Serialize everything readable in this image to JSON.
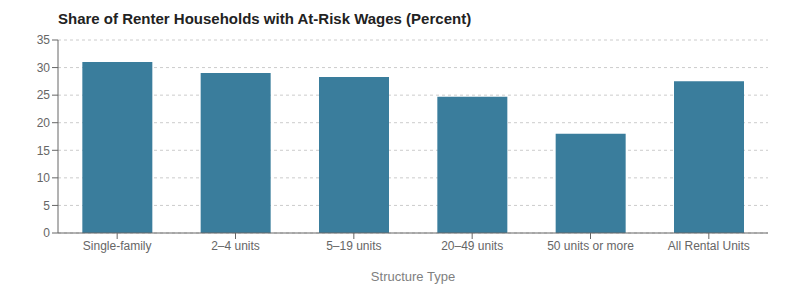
{
  "chart_data": {
    "type": "bar",
    "title": "Share of Renter Households with At-Risk Wages (Percent)",
    "categories": [
      "Single-family",
      "2–4 units",
      "5–19 units",
      "20–49 units",
      "50 units or more",
      "All Rental Units"
    ],
    "values": [
      31.0,
      29.0,
      28.3,
      24.7,
      18.0,
      27.5
    ],
    "color": "#3a7d9c",
    "xlabel": "Structure Type",
    "ylim": [
      0,
      35
    ],
    "yticks": [
      0,
      5,
      10,
      15,
      20,
      25,
      30,
      35
    ],
    "grid": true
  }
}
